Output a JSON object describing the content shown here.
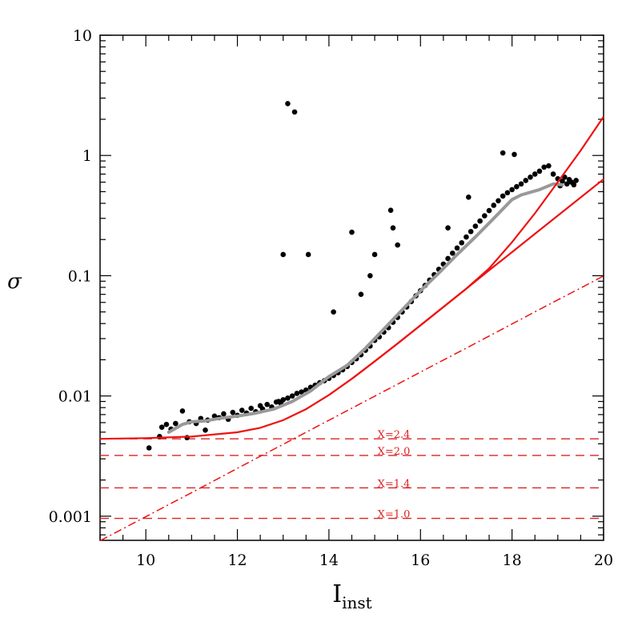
{
  "chart_data": {
    "type": "scatter",
    "xlabel": "I",
    "xlabel_sub": "inst",
    "ylabel": "σ",
    "xlim": [
      9,
      20
    ],
    "ylim": [
      0.00063,
      10
    ],
    "yscale": "log",
    "x_ticks": [
      10,
      12,
      14,
      16,
      18,
      20
    ],
    "x_tick_labels": [
      "10",
      "12",
      "14",
      "16",
      "18",
      "20"
    ],
    "y_ticks": [
      0.001,
      0.01,
      0.1,
      1,
      10
    ],
    "y_tick_labels": [
      "0.001",
      "0.01",
      "0.1",
      "1",
      "10"
    ],
    "colors": {
      "points": "#000000",
      "median": "#999999",
      "model": "#ee1111",
      "reference": "#dd2222"
    },
    "annotations": [
      {
        "label": "X=2.4",
        "y": 0.0044
      },
      {
        "label": "X=2.0",
        "y": 0.0032
      },
      {
        "label": "X=1.4",
        "y": 0.00172
      },
      {
        "label": "X=1.0",
        "y": 0.00096
      }
    ],
    "series": [
      {
        "kind": "points",
        "x": [
          10.07,
          10.3,
          10.35,
          10.45,
          10.55,
          10.65,
          10.8,
          10.9,
          10.95,
          11.1,
          11.2,
          11.3,
          11.35,
          11.5,
          11.6,
          11.7,
          11.8,
          11.9,
          12.0,
          12.1,
          12.2,
          12.3,
          12.4,
          12.5,
          12.55,
          12.65,
          12.75,
          12.85,
          12.95,
          13.0,
          13.1,
          13.2,
          13.3,
          13.4,
          13.5,
          13.6,
          13.7,
          13.8,
          13.9,
          14.0,
          14.1,
          14.2,
          14.3,
          14.4,
          14.5,
          14.6,
          14.7,
          14.8,
          14.9,
          15.0,
          15.1,
          15.2,
          15.3,
          15.4,
          15.5,
          15.6,
          15.7,
          15.8,
          15.9,
          16.0,
          16.1,
          16.2,
          16.3,
          16.4,
          16.5,
          16.6,
          16.7,
          16.8,
          16.9,
          17.0,
          17.1,
          17.2,
          17.3,
          17.4,
          17.5,
          17.6,
          17.7,
          17.8,
          17.9,
          18.0,
          18.1,
          18.2,
          18.3,
          18.4,
          18.5,
          18.6,
          18.7,
          18.8,
          18.9,
          19.0,
          19.05,
          19.1,
          19.15,
          19.2,
          19.25,
          19.3,
          19.35,
          19.4,
          13.1,
          13.25,
          13.0,
          13.55,
          14.5,
          15.0,
          15.35,
          15.4,
          14.1,
          14.9,
          14.7,
          12.9,
          15.5,
          16.6,
          17.05,
          17.8,
          18.05
        ],
        "y": [
          0.0037,
          0.0046,
          0.0055,
          0.0058,
          0.0053,
          0.0059,
          0.0075,
          0.0045,
          0.0061,
          0.0059,
          0.0065,
          0.0052,
          0.0063,
          0.0068,
          0.0066,
          0.0071,
          0.0064,
          0.0073,
          0.0069,
          0.0076,
          0.0072,
          0.0079,
          0.0074,
          0.0083,
          0.0078,
          0.0085,
          0.0081,
          0.0089,
          0.0087,
          0.0093,
          0.0096,
          0.01,
          0.0105,
          0.0108,
          0.0112,
          0.0118,
          0.0123,
          0.0129,
          0.0134,
          0.014,
          0.0148,
          0.0156,
          0.0165,
          0.0176,
          0.019,
          0.0204,
          0.022,
          0.024,
          0.026,
          0.029,
          0.031,
          0.034,
          0.037,
          0.041,
          0.045,
          0.05,
          0.055,
          0.061,
          0.068,
          0.075,
          0.083,
          0.092,
          0.102,
          0.113,
          0.125,
          0.139,
          0.154,
          0.17,
          0.188,
          0.21,
          0.233,
          0.258,
          0.285,
          0.315,
          0.348,
          0.385,
          0.42,
          0.46,
          0.49,
          0.52,
          0.55,
          0.58,
          0.62,
          0.66,
          0.7,
          0.74,
          0.8,
          0.82,
          0.7,
          0.64,
          0.56,
          0.61,
          0.66,
          0.58,
          0.63,
          0.6,
          0.57,
          0.62,
          2.7,
          2.3,
          0.15,
          0.15,
          0.23,
          0.15,
          0.35,
          0.25,
          0.05,
          0.1,
          0.07,
          0.009,
          0.18,
          0.25,
          0.45,
          1.05,
          1.02
        ]
      },
      {
        "kind": "median",
        "x": [
          10.5,
          10.8,
          11.0,
          11.3,
          11.6,
          12.0,
          12.4,
          12.8,
          13.2,
          13.6,
          14.0,
          14.4,
          14.8,
          15.2,
          15.6,
          16.0,
          16.4,
          16.8,
          17.2,
          17.6,
          18.0,
          18.2,
          18.6,
          18.9,
          19.1
        ],
        "y": [
          0.005,
          0.0058,
          0.0061,
          0.0062,
          0.0065,
          0.0068,
          0.0072,
          0.0078,
          0.009,
          0.011,
          0.0145,
          0.018,
          0.025,
          0.036,
          0.052,
          0.075,
          0.105,
          0.15,
          0.21,
          0.3,
          0.43,
          0.47,
          0.52,
          0.58,
          0.57
        ]
      },
      {
        "kind": "model",
        "x": [
          9,
          10,
          11,
          12,
          12.5,
          13,
          13.5,
          14,
          14.5,
          15,
          15.5,
          16,
          16.5,
          17,
          17.5,
          18,
          18.5,
          19,
          19.5,
          20
        ],
        "y": [
          0.0044,
          0.00446,
          0.00459,
          0.00499,
          0.00544,
          0.00629,
          0.00777,
          0.0102,
          0.0139,
          0.0194,
          0.0273,
          0.0387,
          0.0549,
          0.078,
          0.111,
          0.157,
          0.223,
          0.316,
          0.448,
          0.635
        ]
      },
      {
        "kind": "photon",
        "x": [
          9,
          10,
          11,
          12,
          12.5,
          13,
          13.5,
          14,
          14.5,
          15,
          15.5,
          16,
          16.5,
          17,
          17.5,
          18,
          18.5,
          19,
          19.5,
          20
        ],
        "y": [
          0.000625,
          0.000992,
          0.00157,
          0.0025,
          0.00315,
          0.00396,
          0.00499,
          0.00628,
          0.00791,
          0.00996,
          0.01254,
          0.0158,
          0.0199,
          0.025,
          0.0315,
          0.0397,
          0.05,
          0.063,
          0.079,
          0.0996
        ]
      },
      {
        "kind": "model_steep",
        "x": [
          14.5,
          15,
          15.5,
          16,
          16.5,
          17,
          17.5,
          18,
          18.5,
          19,
          19.5,
          20
        ],
        "y": [
          0.0139,
          0.0194,
          0.0273,
          0.0387,
          0.0549,
          0.078,
          0.115,
          0.19,
          0.33,
          0.6,
          1.1,
          2.1
        ]
      }
    ]
  }
}
